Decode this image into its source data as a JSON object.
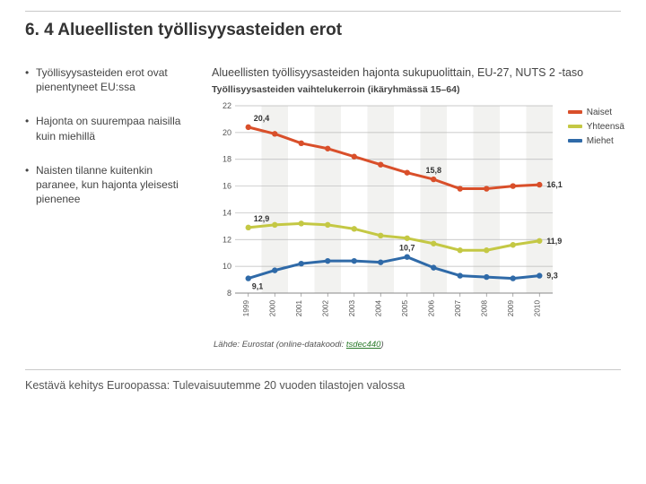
{
  "title": "6. 4 Alueellisten työllisyysasteiden erot",
  "bullets": {
    "b1": "Työllisyysasteiden erot ovat pienentyneet EU:ssa",
    "b2": "Hajonta on suurempaa naisilla kuin miehillä",
    "b3": "Naisten tilanne kuitenkin paranee, kun hajonta yleisesti pienenee"
  },
  "chart": {
    "title": "Alueellisten työllisyysasteiden hajonta sukupuolittain, EU-27, NUTS 2 -taso",
    "subtitle": "Työllisyysasteiden vaihtelukerroin (ikäryhmässä 15–64)",
    "type": "line",
    "background_color": "#ffffff",
    "years": [
      "1999",
      "2000",
      "2001",
      "2002",
      "2003",
      "2004",
      "2005",
      "2006",
      "2007",
      "2008",
      "2009",
      "2010"
    ],
    "ylim": [
      8,
      22
    ],
    "ytick_step": 2,
    "grid_color": "#b9b9b9",
    "axis_color": "#888888",
    "title_fontsize": 12.5,
    "sub_fontsize": 10.5,
    "tick_fontsize": 9,
    "label_fontsize": 9,
    "line_width": 3,
    "marker_radius": 3.2,
    "series": [
      {
        "name": "Naiset",
        "color": "#d94f2a",
        "values": [
          20.4,
          19.9,
          19.2,
          18.8,
          18.2,
          17.6,
          17.0,
          16.5,
          15.8,
          15.8,
          16.0,
          16.1
        ],
        "label_first": "20,4",
        "label_last": "16,1",
        "label_min": "15,8"
      },
      {
        "name": "Yhteensä",
        "color": "#c4c844",
        "values": [
          12.9,
          13.1,
          13.2,
          13.1,
          12.8,
          12.3,
          12.1,
          11.7,
          11.2,
          11.2,
          11.6,
          11.9
        ],
        "label_first": "12,9",
        "label_last": "11,9"
      },
      {
        "name": "Miehet",
        "color": "#2f6aa8",
        "values": [
          9.1,
          9.7,
          10.2,
          10.4,
          10.4,
          10.3,
          10.7,
          9.9,
          9.3,
          9.2,
          9.1,
          9.3
        ],
        "label_first": "9,1",
        "label_peak": "10,7",
        "label_last": "9,3"
      }
    ],
    "legend": {
      "l0": "Naiset",
      "l1": "Yhteensä",
      "l2": "Miehet"
    }
  },
  "source": {
    "prefix": "Lähde: Eurostat (online-datakoodi: ",
    "link": "tsdec440",
    "suffix": ")"
  },
  "footer": "Kestävä kehitys Euroopassa: Tulevaisuutemme 20 vuoden tilastojen valossa"
}
